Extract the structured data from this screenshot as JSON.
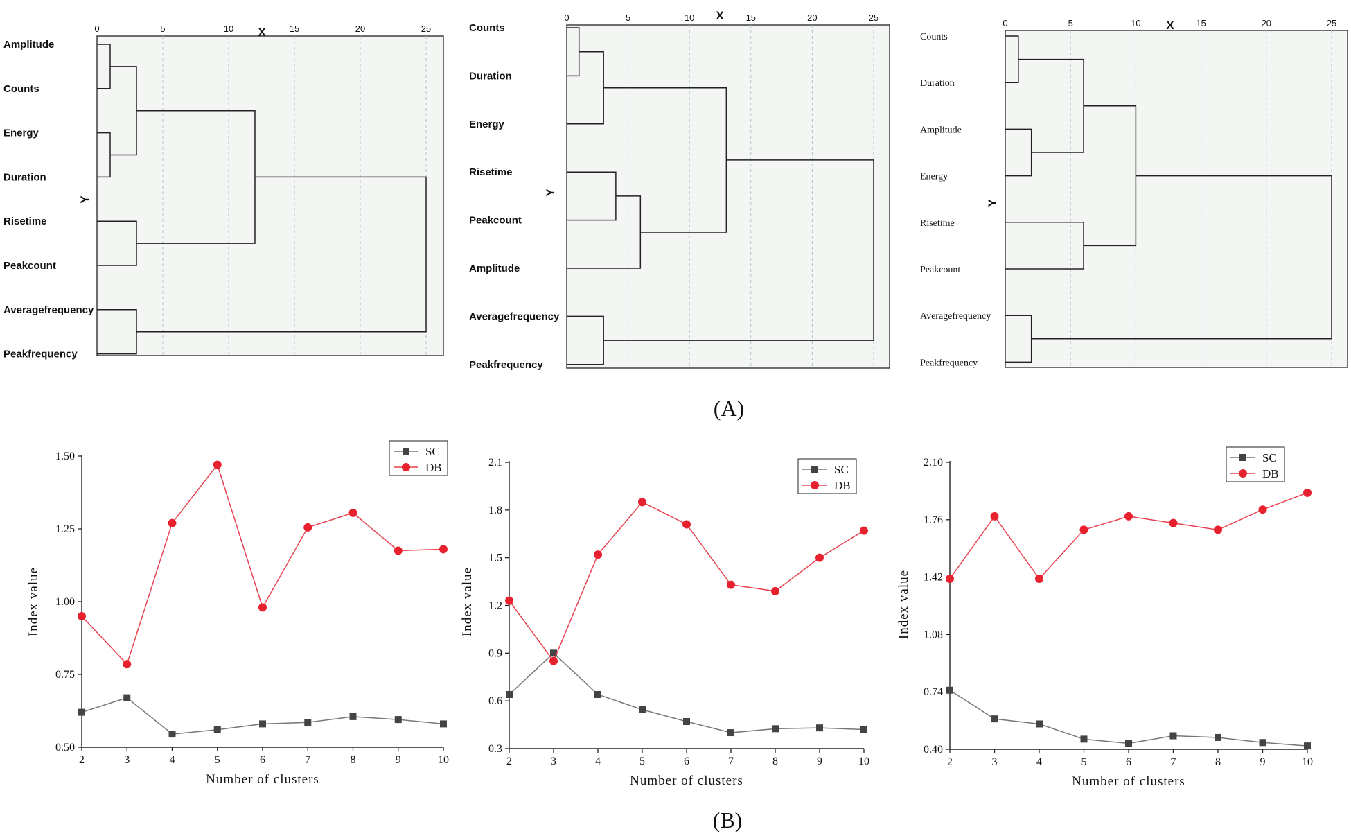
{
  "captions": {
    "top": "(A)",
    "bottom": "(B)"
  },
  "colors": {
    "sc": "#444444",
    "db": "#e8212f",
    "line_sc": "#777777",
    "line_db": "#e8414f",
    "panel_bg": "#f4f6f4",
    "grid": "#b8c0c8"
  },
  "chart_data": [
    {
      "type": "dendrogram",
      "xlabel": "X",
      "ylabel": "Y",
      "xticks": [
        0,
        5,
        10,
        15,
        20,
        25
      ],
      "labels": [
        "Amplitude",
        "Counts",
        "Energy",
        "Duration",
        "Risetime",
        "Peakcount",
        "Averagefrequency",
        "Peakfrequency"
      ],
      "merges": [
        {
          "left": [
            0
          ],
          "right": [
            1
          ],
          "height": 1
        },
        {
          "left": [
            2
          ],
          "right": [
            3
          ],
          "height": 1
        },
        {
          "left": [
            0,
            1
          ],
          "right": [
            2,
            3
          ],
          "height": 3
        },
        {
          "left": [
            4
          ],
          "right": [
            5
          ],
          "height": 3
        },
        {
          "left": [
            0,
            1,
            2,
            3
          ],
          "right": [
            4,
            5
          ],
          "height": 12
        },
        {
          "left": [
            6
          ],
          "right": [
            7
          ],
          "height": 3
        },
        {
          "left": [
            0,
            1,
            2,
            3,
            4,
            5
          ],
          "right": [
            6,
            7
          ],
          "height": 25
        }
      ]
    },
    {
      "type": "dendrogram",
      "xlabel": "X",
      "ylabel": "Y",
      "xticks": [
        0,
        5,
        10,
        15,
        20,
        25
      ],
      "labels": [
        "Counts",
        "Duration",
        "Energy",
        "Risetime",
        "Peakcount",
        "Amplitude",
        "Averagefrequency",
        "Peakfrequency"
      ],
      "merges": [
        {
          "left": [
            0
          ],
          "right": [
            1
          ],
          "height": 1
        },
        {
          "left": [
            0,
            1
          ],
          "right": [
            2
          ],
          "height": 3
        },
        {
          "left": [
            3
          ],
          "right": [
            4
          ],
          "height": 4
        },
        {
          "left": [
            3,
            4
          ],
          "right": [
            5
          ],
          "height": 6
        },
        {
          "left": [
            0,
            1,
            2
          ],
          "right": [
            3,
            4,
            5
          ],
          "height": 13
        },
        {
          "left": [
            6
          ],
          "right": [
            7
          ],
          "height": 3
        },
        {
          "left": [
            0,
            1,
            2,
            3,
            4,
            5
          ],
          "right": [
            6,
            7
          ],
          "height": 25
        }
      ]
    },
    {
      "type": "dendrogram",
      "xlabel": "X",
      "ylabel": "Y",
      "xticks": [
        0,
        5,
        10,
        15,
        20,
        25
      ],
      "labels": [
        "Counts",
        "Duration",
        "Amplitude",
        "Energy",
        "Risetime",
        "Peakcount",
        "Averagefrequency",
        "Peakfrequency"
      ],
      "merges": [
        {
          "left": [
            0
          ],
          "right": [
            1
          ],
          "height": 1
        },
        {
          "left": [
            2
          ],
          "right": [
            3
          ],
          "height": 2
        },
        {
          "left": [
            0,
            1
          ],
          "right": [
            2,
            3
          ],
          "height": 6
        },
        {
          "left": [
            4
          ],
          "right": [
            5
          ],
          "height": 6
        },
        {
          "left": [
            0,
            1,
            2,
            3
          ],
          "right": [
            4,
            5
          ],
          "height": 10
        },
        {
          "left": [
            6
          ],
          "right": [
            7
          ],
          "height": 2
        },
        {
          "left": [
            0,
            1,
            2,
            3,
            4,
            5
          ],
          "right": [
            6,
            7
          ],
          "height": 25
        }
      ]
    },
    {
      "type": "line",
      "xlabel": "Number of clusters",
      "ylabel": "Index value",
      "x": [
        2,
        3,
        4,
        5,
        6,
        7,
        8,
        9,
        10
      ],
      "ylim": [
        0.5,
        1.5
      ],
      "yticks": [
        "0.50",
        "0.75",
        "1.00",
        "1.25",
        "1.50"
      ],
      "legend": "top-right",
      "series": [
        {
          "name": "SC",
          "values": [
            0.62,
            0.67,
            0.545,
            0.56,
            0.58,
            0.585,
            0.605,
            0.595,
            0.58
          ]
        },
        {
          "name": "DB",
          "values": [
            0.95,
            0.785,
            1.27,
            1.47,
            0.98,
            1.255,
            1.305,
            1.175,
            1.18
          ]
        }
      ]
    },
    {
      "type": "line",
      "xlabel": "Number of clusters",
      "ylabel": "Index value",
      "x": [
        2,
        3,
        4,
        5,
        6,
        7,
        8,
        9,
        10
      ],
      "ylim": [
        0.3,
        2.1
      ],
      "yticks": [
        "0.3",
        "0.6",
        "0.9",
        "1.2",
        "1.5",
        "1.8",
        "2.1"
      ],
      "legend": "top-right",
      "series": [
        {
          "name": "SC",
          "values": [
            0.64,
            0.9,
            0.64,
            0.545,
            0.47,
            0.4,
            0.425,
            0.43,
            0.42
          ]
        },
        {
          "name": "DB",
          "values": [
            1.23,
            0.85,
            1.52,
            1.85,
            1.71,
            1.33,
            1.29,
            1.5,
            1.67
          ]
        }
      ]
    },
    {
      "type": "line",
      "xlabel": "Number of clusters",
      "ylabel": "Index value",
      "x": [
        2,
        3,
        4,
        5,
        6,
        7,
        8,
        9,
        10
      ],
      "ylim": [
        0.4,
        2.1
      ],
      "yticks": [
        "0.40",
        "0.74",
        "1.08",
        "1.42",
        "1.76",
        "2.10"
      ],
      "legend": "top-right",
      "series": [
        {
          "name": "SC",
          "values": [
            0.75,
            0.58,
            0.55,
            0.46,
            0.435,
            0.48,
            0.47,
            0.44,
            0.42
          ]
        },
        {
          "name": "DB",
          "values": [
            1.41,
            1.78,
            1.41,
            1.7,
            1.78,
            1.74,
            1.7,
            1.82,
            1.92
          ]
        }
      ]
    }
  ]
}
